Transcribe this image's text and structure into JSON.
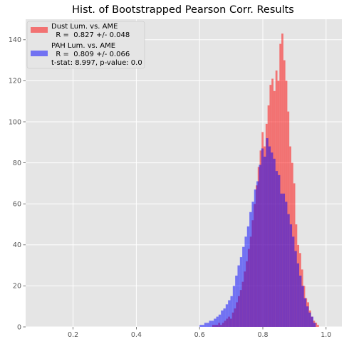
{
  "chart_data": {
    "type": "histogram",
    "title": "Hist. of Bootstrapped Pearson Corr. Results",
    "xlabel": "",
    "ylabel": "",
    "xlim": [
      0.05,
      1.05
    ],
    "ylim": [
      0,
      150
    ],
    "x_ticks": [
      0.2,
      0.4,
      0.6,
      0.8,
      1.0
    ],
    "x_tick_labels": [
      "0.2",
      "0.4",
      "0.6",
      "0.8",
      "1.0"
    ],
    "y_ticks": [
      0,
      20,
      40,
      60,
      80,
      100,
      120,
      140
    ],
    "y_tick_labels": [
      "0",
      "20",
      "40",
      "60",
      "80",
      "100",
      "120",
      "140"
    ],
    "grid": true,
    "legend_position": "top-left",
    "legend": {
      "entries": [
        {
          "series": 0,
          "lines": [
            "Dust Lum. vs. AME",
            "  R =  0.827 +/- 0.048"
          ]
        },
        {
          "series": 1,
          "lines": [
            "PAH Lum. vs. AME",
            "  R =  0.809 +/- 0.066",
            "t-stat: 8.997, p-value: 0.0"
          ]
        }
      ]
    },
    "series": [
      {
        "name": "Dust Lum. vs. AME",
        "color": "#ff0000",
        "alpha": 0.5,
        "bin_start": 0.64,
        "bin_width": 0.00625,
        "counts": [
          1,
          1,
          1,
          2,
          1,
          2,
          3,
          4,
          5,
          4,
          7,
          9,
          12,
          15,
          18,
          22,
          27,
          32,
          38,
          44,
          52,
          60,
          69,
          78,
          86,
          95,
          88,
          99,
          108,
          118,
          121,
          115,
          125,
          120,
          138,
          143,
          130,
          120,
          105,
          88,
          80,
          70,
          50,
          40,
          36,
          28,
          20,
          14,
          12,
          8,
          5,
          3,
          2,
          1
        ]
      },
      {
        "name": "PAH Lum. vs. AME",
        "color": "#0000ff",
        "alpha": 0.5,
        "bin_start": 0.6,
        "bin_width": 0.0075,
        "counts": [
          1,
          1,
          2,
          2,
          3,
          3,
          4,
          5,
          6,
          8,
          9,
          11,
          13,
          15,
          20,
          25,
          30,
          34,
          39,
          44,
          49,
          56,
          61,
          67,
          71,
          79,
          87,
          83,
          92,
          88,
          85,
          82,
          76,
          74,
          65,
          65,
          61,
          55,
          50,
          44,
          37,
          31,
          25,
          20,
          14,
          10,
          7,
          5,
          2
        ]
      }
    ]
  }
}
